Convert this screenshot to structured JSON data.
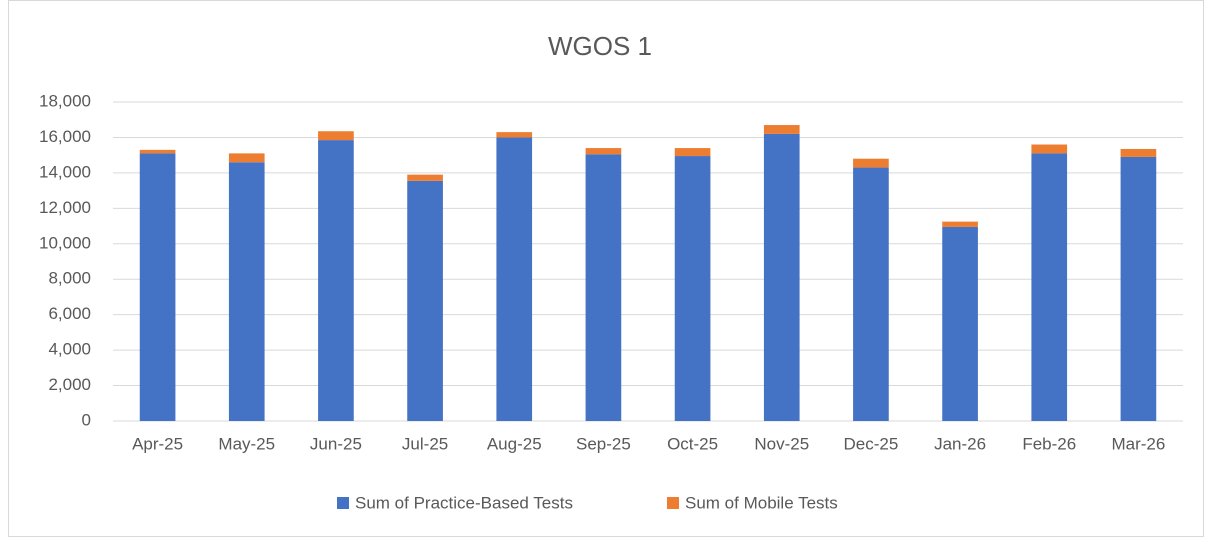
{
  "chart_data": {
    "type": "stacked_bar",
    "title": "WGOS 1",
    "categories": [
      "Apr-25",
      "May-25",
      "Jun-25",
      "Jul-25",
      "Aug-25",
      "Sep-25",
      "Oct-25",
      "Nov-25",
      "Dec-25",
      "Jan-26",
      "Feb-26",
      "Mar-26"
    ],
    "series": [
      {
        "name": "Sum of Practice-Based Tests",
        "color": "#4472c4",
        "values": [
          15100,
          14600,
          15850,
          13550,
          16000,
          15050,
          14950,
          16200,
          14300,
          10950,
          15100,
          14900
        ]
      },
      {
        "name": "Sum of Mobile Tests",
        "color": "#ed7d31",
        "values": [
          200,
          500,
          500,
          350,
          300,
          350,
          450,
          500,
          500,
          300,
          500,
          450
        ]
      }
    ],
    "ylim": [
      0,
      18000
    ],
    "yticks": [
      0,
      {
        "value": 2000,
        "label": "2,000"
      },
      {
        "value": 4000,
        "label": "4,000"
      },
      {
        "value": 6000,
        "label": "6,000"
      },
      {
        "value": 8000,
        "label": "8,000"
      },
      {
        "value": 10000,
        "label": "10,000"
      },
      {
        "value": 12000,
        "label": "12,000"
      },
      {
        "value": 14000,
        "label": "14,000"
      },
      {
        "value": 16000,
        "label": "16,000"
      },
      {
        "value": 18000,
        "label": "18,000"
      }
    ],
    "grid": true,
    "legend": "bottom"
  }
}
